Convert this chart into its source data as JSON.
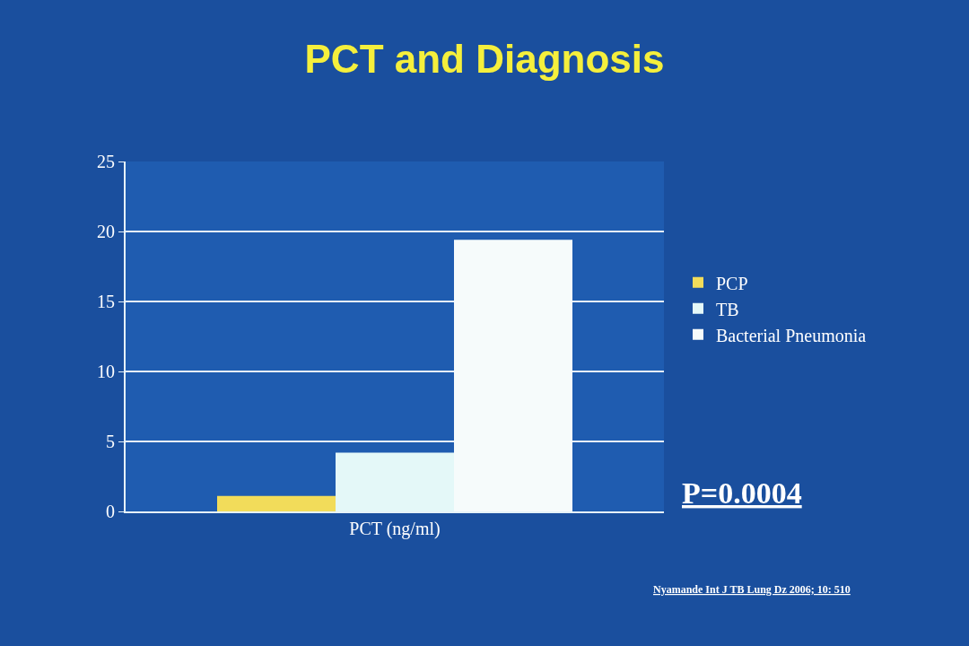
{
  "chart_data": {
    "type": "bar",
    "title": "PCT and Diagnosis",
    "categories": [
      "PCT (ng/ml)"
    ],
    "series": [
      {
        "name": "PCP",
        "color": "#f2dc5a",
        "values": [
          1.1
        ]
      },
      {
        "name": "TB",
        "color": "#e4f8f8",
        "values": [
          4.2
        ]
      },
      {
        "name": "Bacterial Pneumonia",
        "color": "#f6fbfb",
        "values": [
          19.4
        ]
      }
    ],
    "ylim": [
      0,
      25
    ],
    "yticks": [
      0,
      5,
      10,
      15,
      20,
      25
    ],
    "grid": "y",
    "legend": "right",
    "annotations": [
      "P=0.0004",
      "Nyamande Int J TB Lung Dz 2006; 10: 510"
    ]
  }
}
